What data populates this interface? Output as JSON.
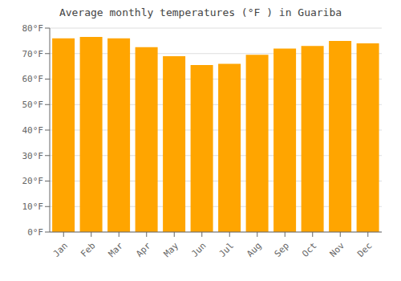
{
  "chart_data": {
    "type": "bar",
    "title": "Average monthly temperatures (°F ) in Guariba",
    "categories": [
      "Jan",
      "Feb",
      "Mar",
      "Apr",
      "May",
      "Jun",
      "Jul",
      "Aug",
      "Sep",
      "Oct",
      "Nov",
      "Dec"
    ],
    "values": [
      76.0,
      76.5,
      76.0,
      72.5,
      69.0,
      65.5,
      66.0,
      69.5,
      72.0,
      73.0,
      75.0,
      74.0
    ],
    "color": "#FFA500",
    "ylim": [
      0,
      80
    ],
    "yticks": [
      {
        "value": 0,
        "label": "0°F"
      },
      {
        "value": 10,
        "label": "10°F"
      },
      {
        "value": 20,
        "label": "20°F"
      },
      {
        "value": 30,
        "label": "30°F"
      },
      {
        "value": 40,
        "label": "40°F"
      },
      {
        "value": 50,
        "label": "50°F"
      },
      {
        "value": 60,
        "label": "60°F"
      },
      {
        "value": 70,
        "label": "70°F"
      },
      {
        "value": 80,
        "label": "80°F"
      }
    ],
    "grid": true
  }
}
